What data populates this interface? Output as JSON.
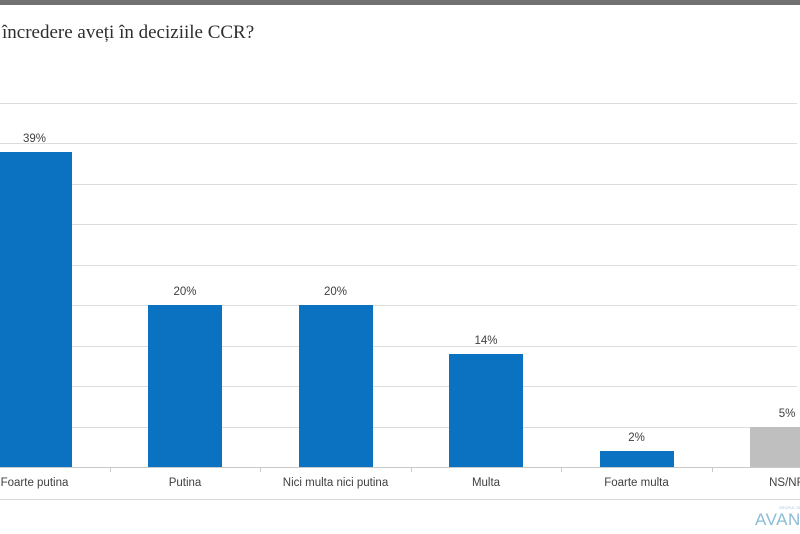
{
  "page": {
    "background": "#ffffff",
    "top_bar_color": "#717171"
  },
  "chart_data": {
    "type": "bar",
    "title": "încredere aveți în deciziile CCR?",
    "categories": [
      "Foarte putina",
      "Putina",
      "Nici multa nici putina",
      "Multa",
      "Foarte multa",
      "NS/NR"
    ],
    "values": [
      39,
      20,
      20,
      14,
      2,
      5
    ],
    "data_labels": [
      "39%",
      "20%",
      "20%",
      "14%",
      "2%",
      "5%"
    ],
    "bar_colors": [
      "#0B72C1",
      "#0B72C1",
      "#0B72C1",
      "#0B72C1",
      "#0B72C1",
      "#BFBFBF"
    ],
    "xlabel": "",
    "ylabel": "",
    "ylim": [
      0,
      45
    ],
    "gridline_step": 5,
    "grid": true,
    "legend": "none",
    "label_color": "#404040",
    "gridline_color": "#dcdcdc"
  },
  "footer": {
    "logo_text": "AVANGARDE",
    "logo_tagline": "GRUPUL DE STUDII SOCIOCOMPORTAMENTALE",
    "logo_color": "#8BBCD6",
    "logo_tagline_color": "#9FC4DA"
  }
}
